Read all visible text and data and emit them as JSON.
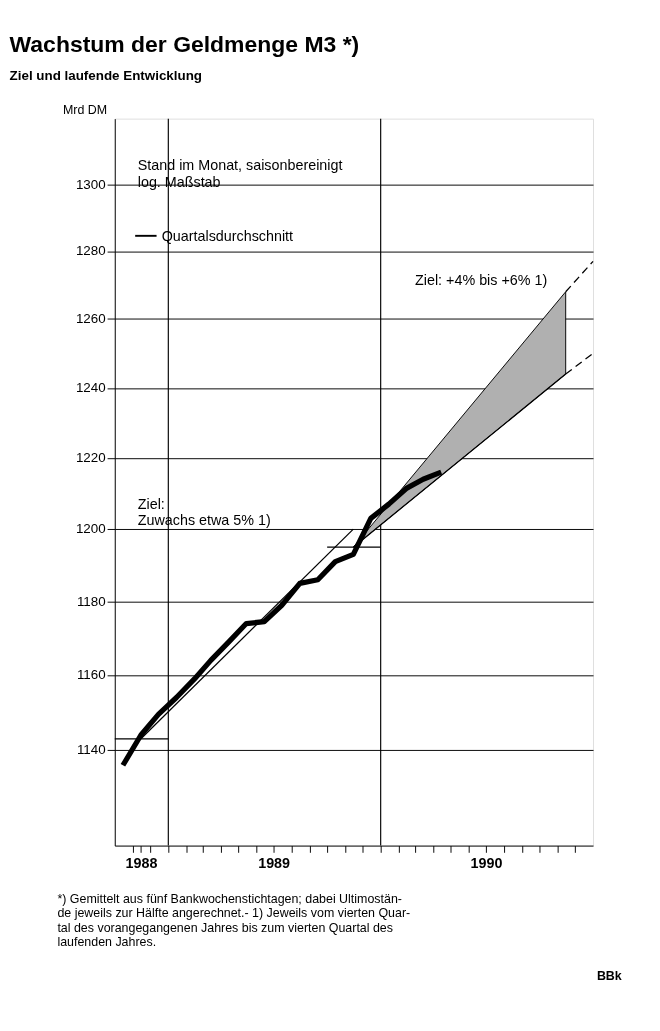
{
  "chart_data": {
    "type": "line",
    "title": "Wachstum der Geldmenge M3 *)",
    "subtitle": "Ziel und laufende Entwicklung",
    "ylabel": "Mrd DM",
    "log": "y",
    "grid": "y",
    "legend": "top left",
    "xlim": [
      "1988-10-01",
      "1991-01-01"
    ],
    "xticks": [
      {
        "value": "1988-11-01",
        "label": null
      },
      {
        "value": "1988-11-15",
        "label": "1988"
      },
      {
        "value": "1988-12-01",
        "label": null
      },
      {
        "value": "1989-01-01",
        "label": null
      },
      {
        "value": "1989-02-01",
        "label": null
      },
      {
        "value": "1989-03-01",
        "label": null
      },
      {
        "value": "1989-04-01",
        "label": null
      },
      {
        "value": "1989-05-01",
        "label": null
      },
      {
        "value": "1989-06-01",
        "label": null
      },
      {
        "value": "1989-07-01",
        "label": "1989"
      },
      {
        "value": "1989-08-01",
        "label": null
      },
      {
        "value": "1989-09-01",
        "label": null
      },
      {
        "value": "1989-10-01",
        "label": null
      },
      {
        "value": "1989-11-01",
        "label": null
      },
      {
        "value": "1989-12-01",
        "label": null
      },
      {
        "value": "1990-01-01",
        "label": null
      },
      {
        "value": "1990-02-01",
        "label": null
      },
      {
        "value": "1990-03-01",
        "label": null
      },
      {
        "value": "1990-04-01",
        "label": null
      },
      {
        "value": "1990-05-01",
        "label": null
      },
      {
        "value": "1990-06-01",
        "label": null
      },
      {
        "value": "1990-07-01",
        "label": "1990"
      },
      {
        "value": "1990-08-01",
        "label": null
      },
      {
        "value": "1990-09-01",
        "label": null
      },
      {
        "value": "1990-10-01",
        "label": null
      },
      {
        "value": "1990-11-01",
        "label": null
      },
      {
        "value": "1990-12-01",
        "label": null
      }
    ],
    "ylim": [
      1115,
      1320
    ],
    "yticks": [
      1140,
      1160,
      1180,
      1200,
      1220,
      1240,
      1260,
      1280,
      1300
    ],
    "ref_lines": [
      {
        "axis": "x",
        "value": "1989-01-01"
      },
      {
        "axis": "x",
        "value": "1990-01-01"
      }
    ],
    "series": [
      {
        "type": "line",
        "color": "#000000",
        "x": [
          "1989-11-15",
          "1990-11-15"
        ],
        "values": [
          1195,
          1244
        ],
        "lower": [
          1195,
          1244
        ],
        "upper": [
          1195,
          1268
        ]
      },
      {
        "type": "line",
        "color": "#000000",
        "x": [
          "1988-10-15",
          "1988-11-15",
          "1988-12-15",
          "1989-01-15",
          "1989-02-15",
          "1989-03-15",
          "1989-04-15",
          "1989-05-15",
          "1989-06-15",
          "1989-07-15",
          "1989-08-15",
          "1989-09-15",
          "1989-10-15",
          "1989-11-15",
          "1989-12-15",
          "1990-01-15",
          "1990-02-15",
          "1990-03-15",
          "1990-04-15"
        ],
        "values": [
          1136,
          1144,
          1149.5,
          1154,
          1159,
          1164,
          1169,
          1174,
          1174.5,
          1179,
          1185,
          1186,
          1191,
          1193,
          1203,
          1207,
          1211.5,
          1214,
          1216
        ]
      },
      {
        "type": "line",
        "color": "#000000",
        "x": [
          "1988-11-15",
          "1989-11-15"
        ],
        "values": [
          1143,
          1200
        ]
      },
      {
        "type": "line",
        "name": "Quartalsdurchschnitt",
        "color": "#000000",
        "x": [
          "1988-10-01",
          "1989-01-01",
          "1989-06-01",
          "1989-10-01",
          "1990-01-01"
        ],
        "values": [
          1143,
          1143,
          null,
          1195,
          1195
        ]
      },
      {
        "type": "line",
        "color": "#000000",
        "line_style": "dashed",
        "x": [
          "1990-11-15",
          "1991-01-01"
        ],
        "values": [
          1268,
          1277
        ]
      },
      {
        "type": "line",
        "color": "#000000",
        "line_style": "dashed",
        "x": [
          "1990-11-15",
          "1991-01-01"
        ],
        "values": [
          1244,
          1250
        ]
      }
    ],
    "annotations": [
      "Stand im Monat, saisonbereinigt\nlog. Maßstab",
      "Ziel: +4% bis +6% 1)",
      "Ziel:\nZuwachs etwa 5% 1)",
      "*) Gemittelt aus fünf Bankwochenstichtagen; dabei Ultimostän-\nde jeweils zur Hälfte angerechnet.- 1) Jeweils vom vierten Quar-\ntal des vorangegangenen Jahres bis zum vierten Quartal des\nlaufenden Jahres.",
      "BBk"
    ]
  }
}
